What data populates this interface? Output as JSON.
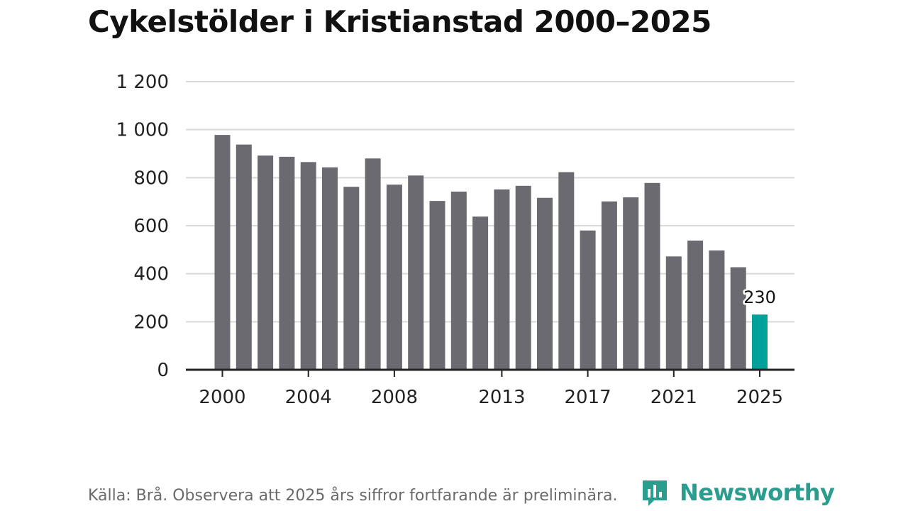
{
  "chart_data": {
    "type": "bar",
    "title": "Cykelstölder i Kristianstad 2000–2025",
    "xlabel": "",
    "ylabel": "",
    "ylim": [
      0,
      1200
    ],
    "yticks": [
      0,
      200,
      400,
      600,
      800,
      1000,
      1200
    ],
    "ytick_labels": [
      "0",
      "200",
      "400",
      "600",
      "800",
      "1 000",
      "1 200"
    ],
    "categories": [
      "2000",
      "2001",
      "2002",
      "2003",
      "2004",
      "2005",
      "2006",
      "2007",
      "2008",
      "2009",
      "2010",
      "2011",
      "2012",
      "2013",
      "2014",
      "2015",
      "2016",
      "2017",
      "2018",
      "2019",
      "2020",
      "2021",
      "2022",
      "2023",
      "2024",
      "2025"
    ],
    "values": [
      978,
      938,
      892,
      887,
      865,
      843,
      762,
      880,
      771,
      809,
      703,
      742,
      638,
      751,
      766,
      716,
      823,
      580,
      701,
      718,
      778,
      472,
      538,
      497,
      427,
      230
    ],
    "xtick_labels": [
      "2000",
      "2004",
      "2008",
      "2013",
      "2017",
      "2021",
      "2025"
    ],
    "highlight": {
      "category": "2025",
      "label": "230"
    },
    "colors": {
      "bar": "#6b6a70",
      "highlight": "#00a19a",
      "grid": "#d9d9d9",
      "axis": "#222222"
    }
  },
  "footer": {
    "source": "Källa: Brå. Observera att 2025 års siffror fortfarande är preliminära."
  },
  "logo": {
    "text": "Newsworthy",
    "icon": "newsworthy-chart-bubble-icon",
    "color": "#2a9d8f"
  }
}
